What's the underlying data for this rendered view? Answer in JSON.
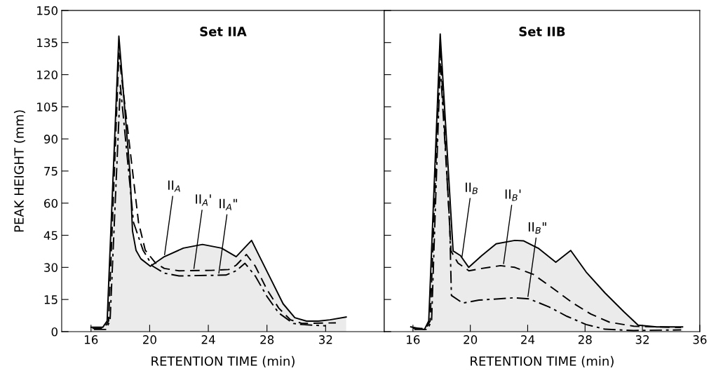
{
  "chart_data": [
    {
      "type": "area",
      "title": "Set IIA",
      "xlabel": "RETENTION TIME (min)",
      "ylabel": "PEAK HEIGHT (mm)",
      "xlim": [
        14,
        36
      ],
      "xticks": [
        16,
        20,
        24,
        28,
        32
      ],
      "ylim": [
        0,
        150
      ],
      "yticks": [
        0,
        15,
        30,
        45,
        60,
        75,
        90,
        105,
        120,
        135,
        150
      ],
      "grid": false,
      "series": [
        {
          "color": "#000000",
          "line_style": "solid",
          "x": [
            16.0,
            16.8,
            17.1,
            17.9,
            18.67,
            18.83,
            19.07,
            19.4,
            20.05,
            21.0,
            22.3,
            23.6,
            24.9,
            25.9,
            26.95,
            27.5,
            28.3,
            29.1,
            29.9,
            30.7,
            31.5,
            32.3,
            33.4
          ],
          "values": [
            2,
            2,
            5,
            138,
            73,
            47,
            38,
            34,
            30.5,
            35,
            39,
            40.7,
            39,
            35,
            42.6,
            35,
            24,
            13,
            6.5,
            4.9,
            4.9,
            5.5,
            6.8
          ]
        },
        {
          "type": "line",
          "color": "#000000",
          "line_style": "dashed",
          "x": [
            16.1,
            16.9,
            17.2,
            17.9,
            19.24,
            19.7,
            20.4,
            21.0,
            22.0,
            24.2,
            25.4,
            25.9,
            26.6,
            27.2,
            28.0,
            28.8,
            29.6,
            30.4,
            32.7
          ],
          "values": [
            1.5,
            1.5,
            5,
            130,
            51,
            38,
            32,
            29.5,
            28.4,
            28.6,
            29,
            31,
            36,
            30.6,
            19.6,
            11,
            5.5,
            3.8,
            4.1
          ]
        },
        {
          "type": "line",
          "color": "#000000",
          "line_style": "dashdot",
          "x": [
            16.2,
            17.0,
            17.3,
            18.0,
            18.9,
            19.55,
            20.2,
            21.0,
            22.0,
            25.2,
            25.9,
            26.5,
            27.2,
            28.0,
            28.8,
            29.8,
            30.4,
            32.0
          ],
          "values": [
            1,
            1,
            5,
            115,
            51,
            38,
            30.6,
            27.3,
            26,
            26.4,
            28.4,
            31.9,
            26,
            16.4,
            8.7,
            3.8,
            3.3,
            2.7
          ]
        }
      ],
      "annotations": [
        {
          "text": "II$_{A}$",
          "x": 21.0,
          "y": 35
        },
        {
          "text": "II$_{A}$'",
          "x": 23.0,
          "y": 28.5
        },
        {
          "text": "II$_{A}$\"",
          "x": 24.7,
          "y": 26.4
        }
      ]
    },
    {
      "type": "area",
      "title": "Set IIB",
      "xlabel": "RETENTION TIME (min)",
      "xlim": [
        14,
        36
      ],
      "xticks": [
        16,
        20,
        24,
        28,
        32,
        36
      ],
      "ylim": [
        0,
        150
      ],
      "yticks": [
        0,
        15,
        30,
        45,
        60,
        75,
        90,
        105,
        120,
        135,
        150
      ],
      "tick_labels": "x",
      "grid": false,
      "series": [
        {
          "color": "#000000",
          "line_style": "solid",
          "x": [
            15.85,
            16.8,
            17.1,
            17.9,
            18.8,
            19.31,
            19.89,
            20.8,
            21.8,
            23.1,
            23.7,
            24.77,
            25.96,
            27.0,
            28.08,
            29.4,
            30.7,
            31.7,
            33.0,
            34.8
          ],
          "values": [
            2.2,
            1,
            5,
            139,
            37.7,
            35.5,
            30,
            35.5,
            41,
            42.6,
            42.4,
            38.8,
            32.4,
            37.9,
            27.8,
            18,
            9.3,
            3,
            2.2,
            2.2
          ]
        },
        {
          "type": "line",
          "color": "#000000",
          "line_style": "dashed",
          "x": [
            16.0,
            16.9,
            17.2,
            17.9,
            18.65,
            19.14,
            19.9,
            20.8,
            22.1,
            23.1,
            24.4,
            25.76,
            27.1,
            28.4,
            29.7,
            31.4,
            34.7
          ],
          "values": [
            1.5,
            1.5,
            5,
            133,
            37.7,
            32,
            28.4,
            29.5,
            30.8,
            30,
            26.7,
            20.2,
            13.6,
            8.2,
            4.4,
            2.5,
            1.9
          ]
        },
        {
          "type": "line",
          "color": "#000000",
          "line_style": "dashdot",
          "x": [
            16.1,
            17.0,
            17.3,
            17.9,
            18.56,
            18.68,
            19.47,
            20.6,
            23.1,
            24.1,
            25.5,
            26.75,
            28.08,
            29.4,
            31.4,
            34.7
          ],
          "values": [
            1,
            1,
            5,
            125,
            50.8,
            16.9,
            13.3,
            14.7,
            15.8,
            15.3,
            11.5,
            7.1,
            3.3,
            1.1,
            0.5,
            0.8
          ]
        }
      ],
      "annotations": [
        {
          "text": "II$_{B}$",
          "x": 19.4,
          "y": 34
        },
        {
          "text": "II$_{B}$'",
          "x": 22.3,
          "y": 30.8
        },
        {
          "text": "II$_{B}$\"",
          "x": 24.0,
          "y": 15.5
        }
      ]
    }
  ]
}
